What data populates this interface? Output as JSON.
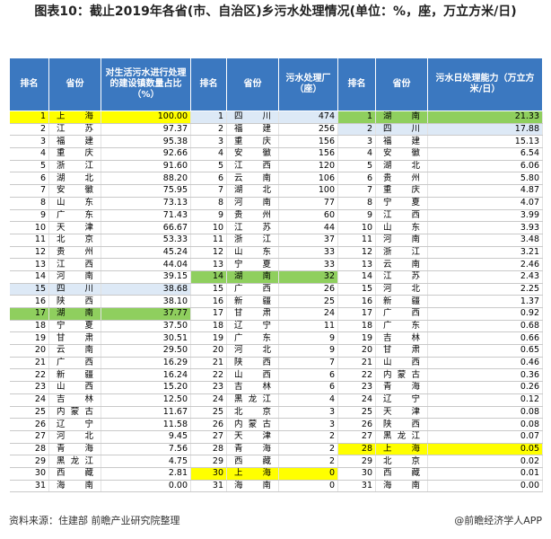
{
  "header": {
    "title": "图表10：截止2019年各省(市、自治区)乡污水处理情况(单位：%，座，万立方米/日)"
  },
  "table": {
    "groups": [
      {
        "headers": [
          "排名",
          "省份",
          "对生活污水进行处理的建设镇数量占比（%）"
        ],
        "rows": [
          {
            "rank": 1,
            "province": "上海",
            "value": "100.00",
            "color": "#ffff00"
          },
          {
            "rank": 2,
            "province": "江苏",
            "value": "97.37"
          },
          {
            "rank": 3,
            "province": "福建",
            "value": "95.38"
          },
          {
            "rank": 4,
            "province": "重庆",
            "value": "92.66"
          },
          {
            "rank": 5,
            "province": "浙江",
            "value": "91.60"
          },
          {
            "rank": 6,
            "province": "湖北",
            "value": "88.20"
          },
          {
            "rank": 7,
            "province": "安徽",
            "value": "75.95"
          },
          {
            "rank": 8,
            "province": "山东",
            "value": "73.13"
          },
          {
            "rank": 9,
            "province": "广东",
            "value": "71.43"
          },
          {
            "rank": 10,
            "province": "天津",
            "value": "66.67"
          },
          {
            "rank": 11,
            "province": "北京",
            "value": "53.33"
          },
          {
            "rank": 12,
            "province": "贵州",
            "value": "45.24"
          },
          {
            "rank": 13,
            "province": "江西",
            "value": "44.04"
          },
          {
            "rank": 14,
            "province": "河南",
            "value": "39.15"
          },
          {
            "rank": 15,
            "province": "四川",
            "value": "38.68",
            "color": "#dde9f6"
          },
          {
            "rank": 16,
            "province": "陕西",
            "value": "38.10"
          },
          {
            "rank": 17,
            "province": "湖南",
            "value": "37.77",
            "color": "#8fcf5e"
          },
          {
            "rank": 18,
            "province": "宁夏",
            "value": "37.50"
          },
          {
            "rank": 19,
            "province": "甘肃",
            "value": "30.51"
          },
          {
            "rank": 20,
            "province": "云南",
            "value": "29.50"
          },
          {
            "rank": 21,
            "province": "广西",
            "value": "16.29"
          },
          {
            "rank": 22,
            "province": "新疆",
            "value": "16.24"
          },
          {
            "rank": 23,
            "province": "山西",
            "value": "15.20"
          },
          {
            "rank": 24,
            "province": "吉林",
            "value": "12.50"
          },
          {
            "rank": 25,
            "province": "内蒙古",
            "value": "11.67"
          },
          {
            "rank": 26,
            "province": "辽宁",
            "value": "11.58"
          },
          {
            "rank": 27,
            "province": "河北",
            "value": "9.45"
          },
          {
            "rank": 28,
            "province": "青海",
            "value": "7.56"
          },
          {
            "rank": 29,
            "province": "黑龙江",
            "value": "4.75"
          },
          {
            "rank": 30,
            "province": "西藏",
            "value": "2.81"
          },
          {
            "rank": 31,
            "province": "海南",
            "value": "0.00"
          }
        ]
      },
      {
        "headers": [
          "排名",
          "省份",
          "污水处理厂（座）"
        ],
        "rows": [
          {
            "rank": 1,
            "province": "四川",
            "value": "474",
            "color": "#dde9f6"
          },
          {
            "rank": 2,
            "province": "福建",
            "value": "256"
          },
          {
            "rank": 3,
            "province": "重庆",
            "value": "156"
          },
          {
            "rank": 4,
            "province": "安徽",
            "value": "156"
          },
          {
            "rank": 5,
            "province": "江西",
            "value": "120"
          },
          {
            "rank": 6,
            "province": "云南",
            "value": "106"
          },
          {
            "rank": 7,
            "province": "湖北",
            "value": "100"
          },
          {
            "rank": 8,
            "province": "河南",
            "value": "77"
          },
          {
            "rank": 9,
            "province": "贵州",
            "value": "60"
          },
          {
            "rank": 10,
            "province": "江苏",
            "value": "44"
          },
          {
            "rank": 11,
            "province": "浙江",
            "value": "37"
          },
          {
            "rank": 12,
            "province": "山东",
            "value": "33"
          },
          {
            "rank": 13,
            "province": "宁夏",
            "value": "33"
          },
          {
            "rank": 14,
            "province": "湖南",
            "value": "32",
            "color": "#8fcf5e"
          },
          {
            "rank": 15,
            "province": "广西",
            "value": "26"
          },
          {
            "rank": 16,
            "province": "新疆",
            "value": "25"
          },
          {
            "rank": 17,
            "province": "甘肃",
            "value": "24"
          },
          {
            "rank": 18,
            "province": "辽宁",
            "value": "11"
          },
          {
            "rank": 19,
            "province": "广东",
            "value": "9"
          },
          {
            "rank": 20,
            "province": "河北",
            "value": "9"
          },
          {
            "rank": 21,
            "province": "陕西",
            "value": "7"
          },
          {
            "rank": 22,
            "province": "山西",
            "value": "6"
          },
          {
            "rank": 23,
            "province": "吉林",
            "value": "6"
          },
          {
            "rank": 24,
            "province": "黑龙江",
            "value": "4"
          },
          {
            "rank": 25,
            "province": "北京",
            "value": "3"
          },
          {
            "rank": 26,
            "province": "内蒙古",
            "value": "3"
          },
          {
            "rank": 27,
            "province": "天津",
            "value": "2"
          },
          {
            "rank": 28,
            "province": "青海",
            "value": "2"
          },
          {
            "rank": 29,
            "province": "西藏",
            "value": "2"
          },
          {
            "rank": 30,
            "province": "上海",
            "value": "0",
            "color": "#ffff00"
          },
          {
            "rank": 31,
            "province": "海南",
            "value": "0"
          }
        ]
      },
      {
        "headers": [
          "排名",
          "省份",
          "污水日处理能力（万立方米/日）"
        ],
        "rows": [
          {
            "rank": 1,
            "province": "湖南",
            "value": "21.33",
            "color": "#8fcf5e"
          },
          {
            "rank": 2,
            "province": "四川",
            "value": "17.88",
            "color": "#dde9f6"
          },
          {
            "rank": 3,
            "province": "福建",
            "value": "15.13"
          },
          {
            "rank": 4,
            "province": "安徽",
            "value": "6.54"
          },
          {
            "rank": 5,
            "province": "湖北",
            "value": "6.06"
          },
          {
            "rank": 6,
            "province": "贵州",
            "value": "5.80"
          },
          {
            "rank": 7,
            "province": "重庆",
            "value": "4.87"
          },
          {
            "rank": 8,
            "province": "宁夏",
            "value": "4.07"
          },
          {
            "rank": 9,
            "province": "江西",
            "value": "3.99"
          },
          {
            "rank": 10,
            "province": "山东",
            "value": "3.93"
          },
          {
            "rank": 11,
            "province": "河南",
            "value": "3.48"
          },
          {
            "rank": 12,
            "province": "浙江",
            "value": "3.21"
          },
          {
            "rank": 13,
            "province": "云南",
            "value": "2.46"
          },
          {
            "rank": 14,
            "province": "江苏",
            "value": "2.43"
          },
          {
            "rank": 15,
            "province": "河北",
            "value": "2.25"
          },
          {
            "rank": 16,
            "province": "新疆",
            "value": "1.37"
          },
          {
            "rank": 17,
            "province": "广西",
            "value": "0.92"
          },
          {
            "rank": 18,
            "province": "广东",
            "value": "0.68"
          },
          {
            "rank": 19,
            "province": "吉林",
            "value": "0.66"
          },
          {
            "rank": 20,
            "province": "甘肃",
            "value": "0.65"
          },
          {
            "rank": 21,
            "province": "山西",
            "value": "0.46"
          },
          {
            "rank": 22,
            "province": "内蒙古",
            "value": "0.36"
          },
          {
            "rank": 23,
            "province": "青海",
            "value": "0.26"
          },
          {
            "rank": 24,
            "province": "辽宁",
            "value": "0.12"
          },
          {
            "rank": 25,
            "province": "天津",
            "value": "0.08"
          },
          {
            "rank": 26,
            "province": "陕西",
            "value": "0.08"
          },
          {
            "rank": 27,
            "province": "黑龙江",
            "value": "0.07"
          },
          {
            "rank": 28,
            "province": "上海",
            "value": "0.05",
            "color": "#ffff00"
          },
          {
            "rank": 29,
            "province": "北京",
            "value": "0.02"
          },
          {
            "rank": 30,
            "province": "西藏",
            "value": "0.01"
          },
          {
            "rank": 31,
            "province": "海南",
            "value": "0.00"
          }
        ]
      }
    ]
  },
  "footer": {
    "source": "资料来源：住建部 前瞻产业研究院整理",
    "credit": "@前瞻经济学人APP"
  }
}
